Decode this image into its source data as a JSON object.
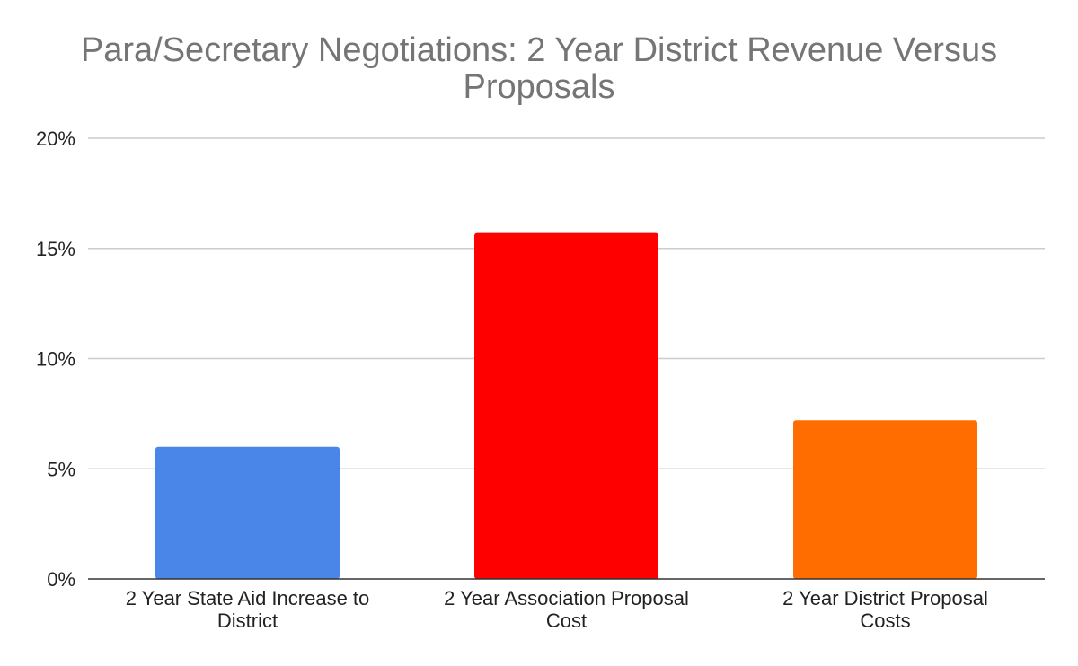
{
  "chart_data": {
    "type": "bar",
    "title_lines": [
      "Para/Secretary Negotiations: 2 Year District Revenue Versus",
      "Proposals"
    ],
    "xlabel": "",
    "ylabel": "",
    "ylim": [
      0,
      20
    ],
    "y_ticks": [
      {
        "value": 0,
        "label": "0%"
      },
      {
        "value": 5,
        "label": "5%"
      },
      {
        "value": 10,
        "label": "10%"
      },
      {
        "value": 15,
        "label": "15%"
      },
      {
        "value": 20,
        "label": "20%"
      }
    ],
    "grid": true,
    "legend": "none",
    "categories": [
      "2 Year State Aid Increase to District",
      "2 Year Association Proposal Cost",
      "2 Year District Proposal Costs"
    ],
    "category_label_lines": [
      [
        "2 Year State Aid Increase to",
        "District"
      ],
      [
        "2 Year Association Proposal",
        "Cost"
      ],
      [
        "2 Year District Proposal",
        "Costs"
      ]
    ],
    "values": [
      6.0,
      15.7,
      7.2
    ],
    "unit": "%",
    "colors": [
      "#4a86e8",
      "#ff0000",
      "#ff6d01"
    ]
  }
}
